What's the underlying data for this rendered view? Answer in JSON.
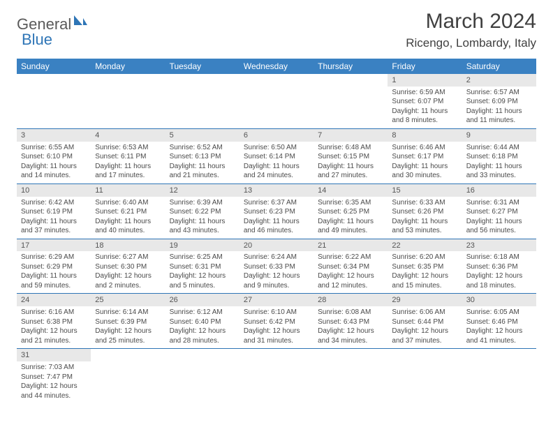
{
  "logo": {
    "general": "General",
    "blue": "Blue",
    "accent_color": "#2e75b6"
  },
  "title": "March 2024",
  "location": "Ricengo, Lombardy, Italy",
  "day_headers": [
    "Sunday",
    "Monday",
    "Tuesday",
    "Wednesday",
    "Thursday",
    "Friday",
    "Saturday"
  ],
  "colors": {
    "header_bg": "#3a81c2",
    "header_fg": "#ffffff",
    "daynum_bg": "#e8e8e8",
    "border": "#2e75b6",
    "text": "#4a4a4a"
  },
  "weeks": [
    [
      null,
      null,
      null,
      null,
      null,
      {
        "n": "1",
        "sr": "Sunrise: 6:59 AM",
        "ss": "Sunset: 6:07 PM",
        "dl": "Daylight: 11 hours and 8 minutes."
      },
      {
        "n": "2",
        "sr": "Sunrise: 6:57 AM",
        "ss": "Sunset: 6:09 PM",
        "dl": "Daylight: 11 hours and 11 minutes."
      }
    ],
    [
      {
        "n": "3",
        "sr": "Sunrise: 6:55 AM",
        "ss": "Sunset: 6:10 PM",
        "dl": "Daylight: 11 hours and 14 minutes."
      },
      {
        "n": "4",
        "sr": "Sunrise: 6:53 AM",
        "ss": "Sunset: 6:11 PM",
        "dl": "Daylight: 11 hours and 17 minutes."
      },
      {
        "n": "5",
        "sr": "Sunrise: 6:52 AM",
        "ss": "Sunset: 6:13 PM",
        "dl": "Daylight: 11 hours and 21 minutes."
      },
      {
        "n": "6",
        "sr": "Sunrise: 6:50 AM",
        "ss": "Sunset: 6:14 PM",
        "dl": "Daylight: 11 hours and 24 minutes."
      },
      {
        "n": "7",
        "sr": "Sunrise: 6:48 AM",
        "ss": "Sunset: 6:15 PM",
        "dl": "Daylight: 11 hours and 27 minutes."
      },
      {
        "n": "8",
        "sr": "Sunrise: 6:46 AM",
        "ss": "Sunset: 6:17 PM",
        "dl": "Daylight: 11 hours and 30 minutes."
      },
      {
        "n": "9",
        "sr": "Sunrise: 6:44 AM",
        "ss": "Sunset: 6:18 PM",
        "dl": "Daylight: 11 hours and 33 minutes."
      }
    ],
    [
      {
        "n": "10",
        "sr": "Sunrise: 6:42 AM",
        "ss": "Sunset: 6:19 PM",
        "dl": "Daylight: 11 hours and 37 minutes."
      },
      {
        "n": "11",
        "sr": "Sunrise: 6:40 AM",
        "ss": "Sunset: 6:21 PM",
        "dl": "Daylight: 11 hours and 40 minutes."
      },
      {
        "n": "12",
        "sr": "Sunrise: 6:39 AM",
        "ss": "Sunset: 6:22 PM",
        "dl": "Daylight: 11 hours and 43 minutes."
      },
      {
        "n": "13",
        "sr": "Sunrise: 6:37 AM",
        "ss": "Sunset: 6:23 PM",
        "dl": "Daylight: 11 hours and 46 minutes."
      },
      {
        "n": "14",
        "sr": "Sunrise: 6:35 AM",
        "ss": "Sunset: 6:25 PM",
        "dl": "Daylight: 11 hours and 49 minutes."
      },
      {
        "n": "15",
        "sr": "Sunrise: 6:33 AM",
        "ss": "Sunset: 6:26 PM",
        "dl": "Daylight: 11 hours and 53 minutes."
      },
      {
        "n": "16",
        "sr": "Sunrise: 6:31 AM",
        "ss": "Sunset: 6:27 PM",
        "dl": "Daylight: 11 hours and 56 minutes."
      }
    ],
    [
      {
        "n": "17",
        "sr": "Sunrise: 6:29 AM",
        "ss": "Sunset: 6:29 PM",
        "dl": "Daylight: 11 hours and 59 minutes."
      },
      {
        "n": "18",
        "sr": "Sunrise: 6:27 AM",
        "ss": "Sunset: 6:30 PM",
        "dl": "Daylight: 12 hours and 2 minutes."
      },
      {
        "n": "19",
        "sr": "Sunrise: 6:25 AM",
        "ss": "Sunset: 6:31 PM",
        "dl": "Daylight: 12 hours and 5 minutes."
      },
      {
        "n": "20",
        "sr": "Sunrise: 6:24 AM",
        "ss": "Sunset: 6:33 PM",
        "dl": "Daylight: 12 hours and 9 minutes."
      },
      {
        "n": "21",
        "sr": "Sunrise: 6:22 AM",
        "ss": "Sunset: 6:34 PM",
        "dl": "Daylight: 12 hours and 12 minutes."
      },
      {
        "n": "22",
        "sr": "Sunrise: 6:20 AM",
        "ss": "Sunset: 6:35 PM",
        "dl": "Daylight: 12 hours and 15 minutes."
      },
      {
        "n": "23",
        "sr": "Sunrise: 6:18 AM",
        "ss": "Sunset: 6:36 PM",
        "dl": "Daylight: 12 hours and 18 minutes."
      }
    ],
    [
      {
        "n": "24",
        "sr": "Sunrise: 6:16 AM",
        "ss": "Sunset: 6:38 PM",
        "dl": "Daylight: 12 hours and 21 minutes."
      },
      {
        "n": "25",
        "sr": "Sunrise: 6:14 AM",
        "ss": "Sunset: 6:39 PM",
        "dl": "Daylight: 12 hours and 25 minutes."
      },
      {
        "n": "26",
        "sr": "Sunrise: 6:12 AM",
        "ss": "Sunset: 6:40 PM",
        "dl": "Daylight: 12 hours and 28 minutes."
      },
      {
        "n": "27",
        "sr": "Sunrise: 6:10 AM",
        "ss": "Sunset: 6:42 PM",
        "dl": "Daylight: 12 hours and 31 minutes."
      },
      {
        "n": "28",
        "sr": "Sunrise: 6:08 AM",
        "ss": "Sunset: 6:43 PM",
        "dl": "Daylight: 12 hours and 34 minutes."
      },
      {
        "n": "29",
        "sr": "Sunrise: 6:06 AM",
        "ss": "Sunset: 6:44 PM",
        "dl": "Daylight: 12 hours and 37 minutes."
      },
      {
        "n": "30",
        "sr": "Sunrise: 6:05 AM",
        "ss": "Sunset: 6:46 PM",
        "dl": "Daylight: 12 hours and 41 minutes."
      }
    ],
    [
      {
        "n": "31",
        "sr": "Sunrise: 7:03 AM",
        "ss": "Sunset: 7:47 PM",
        "dl": "Daylight: 12 hours and 44 minutes."
      },
      null,
      null,
      null,
      null,
      null,
      null
    ]
  ]
}
